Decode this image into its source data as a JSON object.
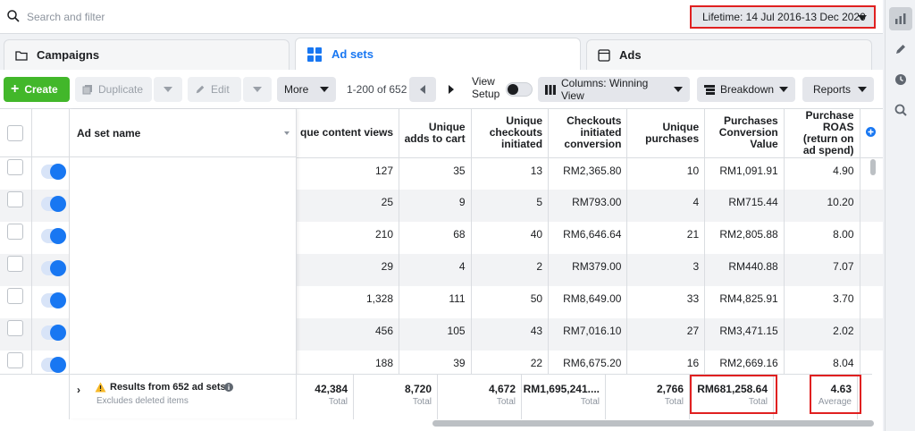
{
  "search": {
    "placeholder": "Search and filter"
  },
  "date_range": {
    "label": "Lifetime: 14 Jul 2016-13 Dec 2020"
  },
  "tabs": [
    {
      "label": "Campaigns",
      "icon": "folder-icon",
      "active": false
    },
    {
      "label": "Ad sets",
      "icon": "grid-icon",
      "active": true
    },
    {
      "label": "Ads",
      "icon": "ad-window-icon",
      "active": false
    }
  ],
  "toolbar": {
    "create_label": "Create",
    "duplicate_label": "Duplicate",
    "edit_label": "Edit",
    "more_label": "More",
    "pagination_label": "1-200 of 652",
    "view_setup_line1": "View",
    "view_setup_line2": "Setup",
    "columns_label": "Columns: Winning View",
    "breakdown_label": "Breakdown",
    "reports_label": "Reports"
  },
  "table": {
    "name_header": "Ad set name",
    "columns": [
      "Unique content views",
      "Unique adds to cart",
      "Unique checkouts initiated",
      "Checkouts initiated conversion",
      "Unique purchases",
      "Purchases Conversion Value",
      "Purchase ROAS (return on ad spend)"
    ],
    "column_header_visible": [
      "que content views",
      "Unique adds to cart",
      "Unique checkouts initiated",
      "Checkouts initiated conversion",
      "Unique purchases",
      "Purchases Conversion Value",
      "Purchase ROAS (return on ad spend)"
    ],
    "rows": [
      [
        "127",
        "35",
        "13",
        "RM2,365.80",
        "10",
        "RM1,091.91",
        "4.90"
      ],
      [
        "25",
        "9",
        "5",
        "RM793.00",
        "4",
        "RM715.44",
        "10.20"
      ],
      [
        "210",
        "68",
        "40",
        "RM6,646.64",
        "21",
        "RM2,805.88",
        "8.00"
      ],
      [
        "29",
        "4",
        "2",
        "RM379.00",
        "3",
        "RM440.88",
        "7.07"
      ],
      [
        "1,328",
        "111",
        "50",
        "RM8,649.00",
        "33",
        "RM4,825.91",
        "3.70"
      ],
      [
        "456",
        "105",
        "43",
        "RM7,016.10",
        "27",
        "RM3,471.15",
        "2.02"
      ],
      [
        "188",
        "39",
        "22",
        "RM6,675.20",
        "16",
        "RM2,669.16",
        "8.04"
      ]
    ],
    "totals": {
      "results_label": "Results from 652 ad sets",
      "results_sub": "Excludes deleted items",
      "values": [
        "42,384",
        "8,720",
        "4,672",
        "RM1,695,241....",
        "2,766",
        "RM681,258.64",
        "4.63"
      ],
      "subs": [
        "Total",
        "Total",
        "Total",
        "Total",
        "Total",
        "Total",
        "Average"
      ]
    }
  },
  "colors": {
    "accent": "#1877f2",
    "create_green": "#42b72a",
    "highlight_red": "#e02020"
  }
}
